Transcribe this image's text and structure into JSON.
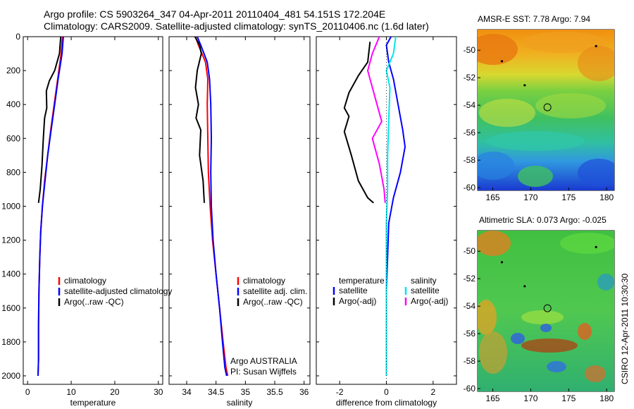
{
  "header": {
    "line1": "Argo profile: CS 5903264_347 04-Apr-2011 20110404_481 54.151S 172.204E",
    "line2": "Climatology: CARS2009. Satellite-adjusted climatology: synTS_20110406.nc (1.6d later)"
  },
  "credit": "CSIRO 12-Apr-2011 10:30:30",
  "colors": {
    "climatology": "#ff0000",
    "satellite": "#0000ff",
    "argo": "#000000",
    "satellite_salinity": "#00e5ee",
    "argo_adj_salinity": "#ff00ff"
  },
  "chart_data": [
    {
      "type": "line",
      "xlabel": "temperature",
      "ylabel": "",
      "xlim": [
        -1,
        31
      ],
      "ylim": [
        2050,
        0
      ],
      "y_inverted": true,
      "xticks": [
        0,
        10,
        20,
        30
      ],
      "yticks": [
        0,
        200,
        400,
        600,
        800,
        1000,
        1200,
        1400,
        1600,
        1800,
        2000
      ],
      "legend": [
        "climatology",
        "satellite-adjusted climatology",
        "Argo(..raw -QC)"
      ],
      "series": [
        {
          "name": "climatology",
          "color": "#ff0000",
          "x": [
            8.0,
            7.7,
            6.9,
            6.1,
            5.3,
            4.6,
            3.9,
            3.4,
            3.0,
            2.8,
            2.6,
            2.5,
            2.5,
            2.4
          ],
          "y": [
            0,
            100,
            250,
            400,
            550,
            700,
            850,
            1000,
            1150,
            1300,
            1500,
            1700,
            1900,
            2000
          ]
        },
        {
          "name": "satellite-adjusted climatology",
          "color": "#0000ff",
          "x": [
            8.2,
            7.9,
            7.0,
            6.2,
            5.4,
            4.6,
            4.0,
            3.4,
            3.0,
            2.8,
            2.6,
            2.5,
            2.5,
            2.4
          ],
          "y": [
            0,
            100,
            250,
            400,
            550,
            700,
            850,
            1000,
            1150,
            1300,
            1500,
            1700,
            1900,
            2000
          ]
        },
        {
          "name": "Argo(..raw -QC)",
          "color": "#000000",
          "x": [
            7.6,
            7.3,
            6.2,
            5.0,
            4.3,
            4.4,
            3.9,
            3.6,
            3.3,
            2.9,
            2.5
          ],
          "y": [
            0,
            100,
            200,
            260,
            320,
            420,
            480,
            600,
            760,
            900,
            980
          ]
        }
      ]
    },
    {
      "type": "line",
      "xlabel": "salinity",
      "ylabel": "",
      "xlim": [
        33.7,
        36.1
      ],
      "ylim": [
        2050,
        0
      ],
      "y_inverted": true,
      "xticks": [
        34,
        34.5,
        35,
        35.5,
        36
      ],
      "legend": [
        "climatology",
        "satellite adj. clim.",
        "Argo(..raw -QC)"
      ],
      "annotations": [
        "Argo AUSTRALIA",
        "PI: Susan Wijffels"
      ],
      "series": [
        {
          "name": "climatology",
          "color": "#ff0000",
          "x": [
            34.15,
            34.2,
            34.32,
            34.36,
            34.35,
            34.36,
            34.37,
            34.4,
            34.44,
            34.5,
            34.56,
            34.62,
            34.67,
            34.7
          ],
          "y": [
            0,
            50,
            150,
            250,
            400,
            600,
            800,
            1000,
            1200,
            1400,
            1600,
            1800,
            1950,
            2000
          ]
        },
        {
          "name": "satellite adj. clim.",
          "color": "#0000ff",
          "x": [
            34.18,
            34.24,
            34.35,
            34.39,
            34.41,
            34.42,
            34.41,
            34.42,
            34.45,
            34.5,
            34.56,
            34.61,
            34.65,
            34.68
          ],
          "y": [
            0,
            50,
            150,
            250,
            400,
            600,
            800,
            1000,
            1200,
            1400,
            1600,
            1800,
            1950,
            2000
          ]
        },
        {
          "name": "Argo(..raw -QC)",
          "color": "#000000",
          "x": [
            34.14,
            34.22,
            34.25,
            34.18,
            34.15,
            34.2,
            34.16,
            34.24,
            34.22,
            34.28,
            34.3
          ],
          "y": [
            0,
            50,
            100,
            200,
            300,
            400,
            480,
            550,
            700,
            850,
            980
          ]
        }
      ]
    },
    {
      "type": "line",
      "xlabel": "difference from climatology",
      "ylabel": "",
      "xlim": [
        -3,
        3
      ],
      "ylim": [
        2050,
        0
      ],
      "y_inverted": true,
      "xticks": [
        -2,
        0,
        2
      ],
      "legend": [
        "temperature",
        "satellite",
        "Argo(-adj)",
        "salinity",
        "satellite",
        "Argo(-adj)"
      ],
      "series": [
        {
          "name": "satellite",
          "group": "temperature",
          "color": "#0000ff",
          "x": [
            0.2,
            0.0,
            0.1,
            0.3,
            0.5,
            0.7,
            0.8,
            0.6,
            0.3,
            0.1,
            0.05,
            0.0,
            0.0,
            0.0
          ],
          "y": [
            0,
            50,
            150,
            250,
            400,
            550,
            650,
            800,
            950,
            1100,
            1300,
            1500,
            1800,
            2000
          ]
        },
        {
          "name": "Argo(-adj)",
          "group": "temperature",
          "color": "#000000",
          "x": [
            -0.7,
            -0.8,
            -1.2,
            -1.6,
            -1.8,
            -1.6,
            -1.8,
            -1.5,
            -1.2,
            -0.8,
            -0.55
          ],
          "y": [
            30,
            150,
            230,
            330,
            420,
            470,
            560,
            700,
            850,
            950,
            980
          ]
        },
        {
          "name": "satellite",
          "group": "salinity",
          "color": "#00e5ee",
          "x": [
            0.4,
            0.3,
            0.0,
            0.15,
            0.1,
            0.05,
            0.05,
            0.0,
            0.0,
            0.0
          ],
          "y": [
            0,
            100,
            200,
            300,
            500,
            700,
            900,
            1100,
            1500,
            2000
          ]
        },
        {
          "name": "Argo(-adj)",
          "group": "salinity",
          "color": "#ff00ff",
          "x": [
            -0.3,
            -0.6,
            -0.8,
            -0.6,
            -0.4,
            -0.2,
            -0.6,
            -0.3,
            -0.1,
            -0.05
          ],
          "y": [
            0,
            100,
            200,
            300,
            400,
            500,
            600,
            750,
            900,
            980
          ]
        }
      ]
    },
    {
      "type": "heatmap",
      "title": "AMSR-E SST: 7.78 Argo: 7.94",
      "xlim": [
        163,
        181
      ],
      "ylim": [
        -60.2,
        -48.5
      ],
      "xticks": [
        165,
        170,
        175,
        180
      ],
      "yticks": [
        -50,
        -52,
        -54,
        -56,
        -58,
        -60
      ],
      "markers": [
        {
          "lon": 172.2,
          "lat": -54.15,
          "label": "profile"
        }
      ]
    },
    {
      "type": "heatmap",
      "title": "Altimetric SLA: 0.073 Argo: -0.025",
      "xlim": [
        163,
        181
      ],
      "ylim": [
        -60.2,
        -48.5
      ],
      "xticks": [
        165,
        170,
        175,
        180
      ],
      "yticks": [
        -50,
        -52,
        -54,
        -56,
        -58,
        -60
      ],
      "markers": [
        {
          "lon": 172.2,
          "lat": -54.15,
          "label": "profile"
        }
      ]
    }
  ]
}
